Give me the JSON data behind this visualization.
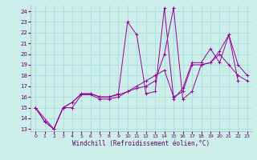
{
  "xlabel": "Windchill (Refroidissement éolien,°C)",
  "bg_color": "#cceee8",
  "grid_color": "#aadddd",
  "line_color": "#990099",
  "xlim": [
    -0.5,
    23.5
  ],
  "ylim": [
    12.8,
    24.6
  ],
  "yticks": [
    13,
    14,
    15,
    16,
    17,
    18,
    19,
    20,
    21,
    22,
    23,
    24
  ],
  "xticks": [
    0,
    1,
    2,
    3,
    4,
    5,
    6,
    7,
    8,
    9,
    10,
    11,
    12,
    13,
    14,
    15,
    16,
    17,
    18,
    19,
    20,
    21,
    22,
    23
  ],
  "series": [
    {
      "x": [
        0,
        1,
        2,
        3,
        4,
        5,
        6,
        7,
        8,
        9,
        10,
        11,
        12,
        13,
        14,
        15,
        16,
        17,
        18,
        19,
        20,
        21,
        22,
        23
      ],
      "y": [
        15,
        13.7,
        13,
        15,
        15,
        16.2,
        16.2,
        15.8,
        15.8,
        16,
        16.5,
        17,
        17.5,
        18,
        18.5,
        16,
        16.5,
        19,
        19,
        19.2,
        20,
        19,
        18,
        17.5
      ]
    },
    {
      "x": [
        0,
        1,
        2,
        3,
        4,
        5,
        6,
        7,
        8,
        9,
        10,
        11,
        12,
        13,
        14,
        15
      ],
      "y": [
        15,
        13.7,
        13,
        15,
        15.5,
        16.3,
        16.3,
        16,
        16,
        16.2,
        16.5,
        16.8,
        17,
        17.5,
        20,
        24.3
      ]
    },
    {
      "x": [
        15,
        16,
        17,
        18,
        19,
        20,
        21,
        22,
        23
      ],
      "y": [
        24.3,
        15.8,
        16.5,
        19,
        19.2,
        20.3,
        21.8,
        19,
        18
      ]
    },
    {
      "x": [
        0,
        2,
        3,
        4,
        5,
        6,
        7,
        8,
        9,
        10,
        11,
        12,
        13,
        14,
        15,
        16,
        17,
        18,
        19,
        20,
        21,
        22,
        23
      ],
      "y": [
        15,
        13,
        15,
        15.5,
        16.3,
        16.3,
        16,
        16,
        16.3,
        23,
        21.8,
        16.3,
        16.5,
        24.3,
        15.8,
        16.8,
        19.2,
        19.2,
        20.5,
        19.2,
        21.8,
        17.5,
        null
      ]
    }
  ]
}
